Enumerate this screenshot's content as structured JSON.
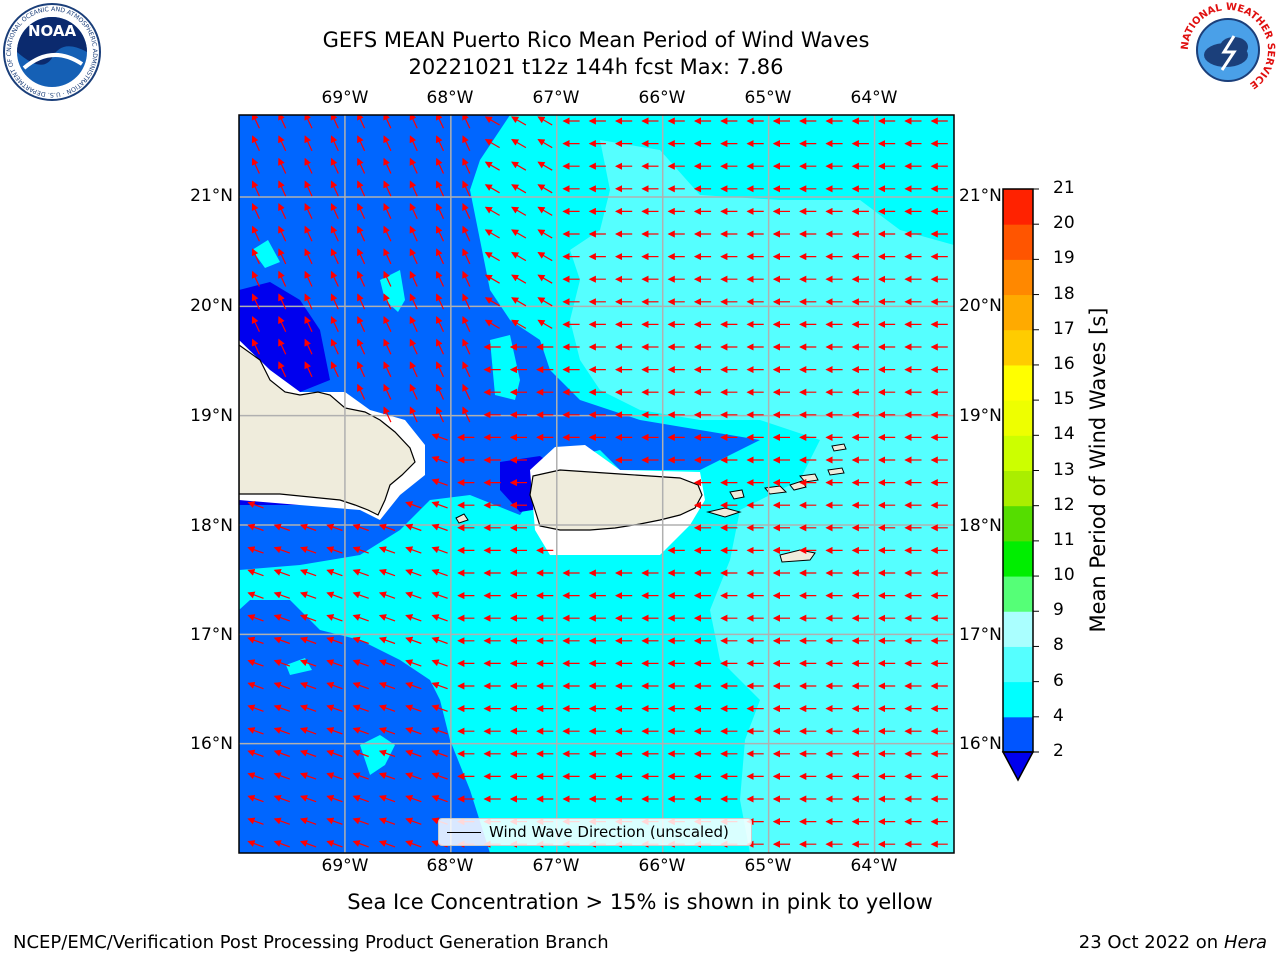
{
  "title": {
    "line1": "GEFS MEAN Puerto Rico Mean Period of Wind Waves",
    "line2": "20221021 t12z 144h fcst   Max: 7.86"
  },
  "logos": {
    "left": "NOAA",
    "left_ring_text": "NATIONAL OCEANIC AND ATMOSPHERIC ADMINISTRATION · U.S. DEPARTMENT OF COMMERCE",
    "right_ring_text": "NATIONAL WEATHER SERVICE"
  },
  "axes": {
    "lon_ticks": [
      "69°W",
      "68°W",
      "67°W",
      "66°W",
      "65°W",
      "64°W"
    ],
    "lat_ticks": [
      "21°N",
      "20°N",
      "19°N",
      "18°N",
      "17°N",
      "16°N"
    ],
    "lon_values": [
      -69,
      -68,
      -67,
      -66,
      -65,
      -64
    ],
    "lat_values": [
      21,
      20,
      19,
      18,
      17,
      16
    ],
    "lon_range": [
      -70.0,
      -63.25
    ],
    "lat_range": [
      15.0,
      21.75
    ],
    "grid": true
  },
  "colorbar": {
    "title": "Mean Period of Wind Waves [s]",
    "labels": [
      "21",
      "20",
      "19",
      "18",
      "17",
      "16",
      "15",
      "14",
      "13",
      "12",
      "11",
      "10",
      "9",
      "8",
      "6",
      "4",
      "2"
    ],
    "levels": [
      2,
      4,
      6,
      8,
      9,
      10,
      11,
      12,
      13,
      14,
      15,
      16,
      17,
      18,
      19,
      20,
      21
    ],
    "colors": [
      "#0055ff",
      "#00ffff",
      "#55ffff",
      "#aaffff",
      "#55ff77",
      "#00ee00",
      "#55dd00",
      "#aaee00",
      "#ccff00",
      "#eeff00",
      "#ffff00",
      "#ffcc00",
      "#ffaa00",
      "#ff8800",
      "#ff5500",
      "#ff2200"
    ],
    "under_color": "#0000ee",
    "extend": "min"
  },
  "field_colors": {
    "deep_blue": "#0000ee",
    "blue": "#0066ff",
    "cyan": "#00ffff",
    "light_cyan": "#55ffff",
    "land": "#efecdc",
    "arrow": "#ff0000"
  },
  "legend": {
    "label": "Wind Wave Direction (unscaled)",
    "placement": "bottom-center"
  },
  "note": "Sea Ice Concentration > 15% is shown in pink to yellow",
  "footer": {
    "left": "NCEP/EMC/Verification Post Processing Product Generation Branch",
    "right_prefix": "23 Oct 2022 on ",
    "right_machine": "Hera"
  }
}
